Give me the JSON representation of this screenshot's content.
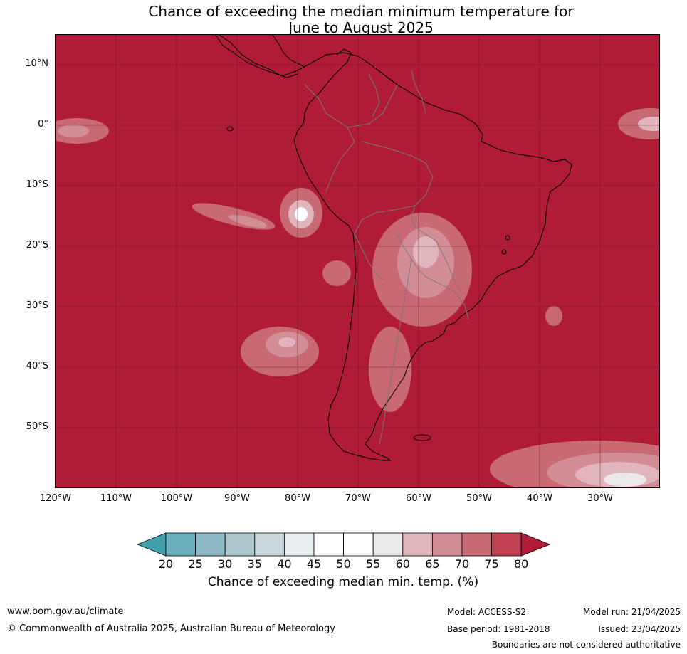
{
  "title_line1": "Chance of exceeding the median minimum temperature for",
  "title_line2": "June to August 2025",
  "map": {
    "background_color": "#b01c38",
    "lat_ticks": [
      "10°N",
      "0°",
      "10°S",
      "20°S",
      "30°S",
      "40°S",
      "50°S"
    ],
    "lon_ticks": [
      "120°W",
      "110°W",
      "100°W",
      "90°W",
      "80°W",
      "70°W",
      "60°W",
      "50°W",
      "40°W",
      "30°W"
    ]
  },
  "colorbar": {
    "ticks": [
      "20",
      "25",
      "30",
      "35",
      "40",
      "45",
      "50",
      "55",
      "60",
      "65",
      "70",
      "75",
      "80"
    ],
    "colors": [
      "#41a0ac",
      "#6aaebd",
      "#8cb9c4",
      "#acc8cd",
      "#cbd9dc",
      "#e9eff0",
      "#ffffff",
      "#ffffff",
      "#ebe9ea",
      "#e0b6bc",
      "#d38d97",
      "#c86973",
      "#c04252",
      "#b01c38"
    ],
    "label": "Chance of exceeding median min. temp. (%)"
  },
  "footer": {
    "website": "www.bom.gov.au/climate",
    "copyright": "© Commonwealth of Australia 2025, Australian Bureau of Meteorology",
    "model": "Model: ACCESS-S2",
    "base_period": "Base period: 1981-2018",
    "model_run": "Model run: 21/04/2025",
    "issued": "Issued: 23/04/2025",
    "disclaimer": "Boundaries are not considered authoritative"
  }
}
